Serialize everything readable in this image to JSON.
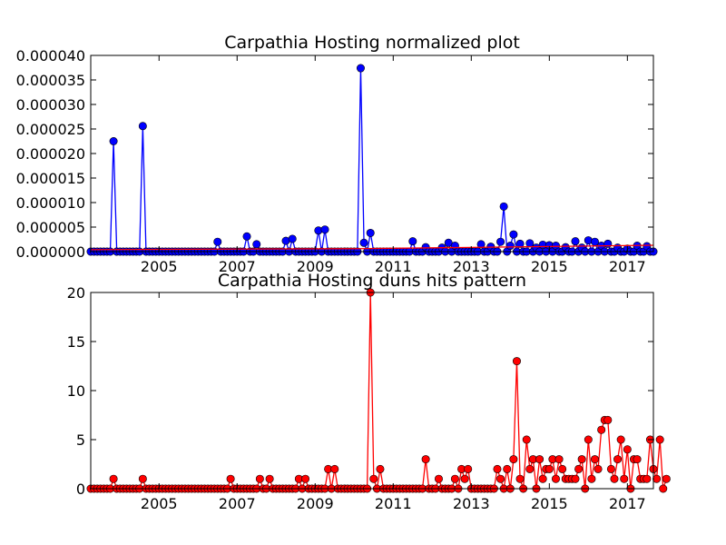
{
  "chart_data": [
    {
      "type": "line",
      "title": "Carpathia Hosting normalized plot",
      "xlabel": "",
      "ylabel": "",
      "x_ticks": [
        "2005",
        "2007",
        "2009",
        "2011",
        "2013",
        "2015",
        "2017"
      ],
      "y_ticks": [
        "0.000000",
        "0.000005",
        "0.000010",
        "0.000015",
        "0.000020",
        "0.000025",
        "0.000030",
        "0.000035",
        "0.000040"
      ],
      "xlim": [
        "2003-04",
        "2017-09"
      ],
      "ylim": [
        0,
        4e-05
      ],
      "grid": false,
      "series": [
        {
          "color": "#0000ff",
          "marker": "circle",
          "points": [
            [
              "2003-11",
              2.25e-05
            ],
            [
              "2004-08",
              2.56e-05
            ],
            [
              "2006-07",
              2e-06
            ],
            [
              "2007-04",
              3.1e-06
            ],
            [
              "2007-07",
              1.5e-06
            ],
            [
              "2008-04",
              2.2e-06
            ],
            [
              "2008-06",
              2.6e-06
            ],
            [
              "2009-02",
              4.3e-06
            ],
            [
              "2009-04",
              4.5e-06
            ],
            [
              "2010-03",
              3.74e-05
            ],
            [
              "2010-04",
              1.8e-06
            ],
            [
              "2010-06",
              3.8e-06
            ],
            [
              "2011-07",
              2.1e-06
            ],
            [
              "2011-11",
              9e-07
            ],
            [
              "2012-04",
              8e-07
            ],
            [
              "2012-06",
              1.8e-06
            ],
            [
              "2012-08",
              1.2e-06
            ],
            [
              "2013-04",
              1.5e-06
            ],
            [
              "2013-07",
              1e-06
            ],
            [
              "2013-10",
              2e-06
            ],
            [
              "2013-11",
              9.2e-06
            ],
            [
              "2014-01",
              1.2e-06
            ],
            [
              "2014-02",
              3.5e-06
            ],
            [
              "2014-04",
              1.6e-06
            ],
            [
              "2014-07",
              1.7e-06
            ],
            [
              "2014-09",
              8e-07
            ],
            [
              "2014-11",
              1.4e-06
            ],
            [
              "2015-01",
              1.3e-06
            ],
            [
              "2015-03",
              1.2e-06
            ],
            [
              "2015-06",
              9e-07
            ],
            [
              "2015-09",
              2.1e-06
            ],
            [
              "2015-11",
              8e-07
            ],
            [
              "2016-01",
              2.3e-06
            ],
            [
              "2016-03",
              2e-06
            ],
            [
              "2016-05",
              1.2e-06
            ],
            [
              "2016-07",
              1.6e-06
            ],
            [
              "2016-10",
              8e-07
            ],
            [
              "2017-01",
              6e-07
            ],
            [
              "2017-04",
              1.2e-06
            ],
            [
              "2017-07",
              1.1e-06
            ]
          ]
        },
        {
          "color": "#ff0000",
          "marker": "none",
          "points": [
            [
              "2003-04",
              4e-07
            ],
            [
              "2010-03",
              6e-07
            ],
            [
              "2017-09",
              1.3e-06
            ]
          ]
        }
      ]
    },
    {
      "type": "line",
      "title": "Carpathia Hosting duns hits pattern",
      "xlabel": "",
      "ylabel": "",
      "x_ticks": [
        "2005",
        "2007",
        "2009",
        "2011",
        "2013",
        "2015",
        "2017"
      ],
      "y_ticks": [
        "0",
        "5",
        "10",
        "15",
        "20"
      ],
      "xlim": [
        "2003-04",
        "2017-09"
      ],
      "ylim": [
        0,
        20
      ],
      "grid": false,
      "series": [
        {
          "color": "#ff0000",
          "marker": "circle",
          "start": "2003-04",
          "step": "month",
          "values": [
            0,
            0,
            0,
            0,
            0,
            0,
            0,
            1,
            0,
            0,
            0,
            0,
            0,
            0,
            0,
            0,
            1,
            0,
            0,
            0,
            0,
            0,
            0,
            0,
            0,
            0,
            0,
            0,
            0,
            0,
            0,
            0,
            0,
            0,
            0,
            0,
            0,
            0,
            0,
            0,
            0,
            0,
            0,
            1,
            0,
            0,
            0,
            0,
            0,
            0,
            0,
            0,
            1,
            0,
            0,
            1,
            0,
            0,
            0,
            0,
            0,
            0,
            0,
            0,
            1,
            0,
            1,
            0,
            0,
            0,
            0,
            0,
            0,
            2,
            0,
            2,
            0,
            0,
            0,
            0,
            0,
            0,
            0,
            0,
            0,
            0,
            20,
            1,
            0,
            2,
            0,
            0,
            0,
            0,
            0,
            0,
            0,
            0,
            0,
            0,
            0,
            0,
            0,
            3,
            0,
            0,
            0,
            1,
            0,
            0,
            0,
            0,
            1,
            0,
            2,
            1,
            2,
            0,
            0,
            0,
            0,
            0,
            0,
            0,
            0,
            2,
            1,
            0,
            2,
            0,
            3,
            13,
            1,
            0,
            5,
            2,
            3,
            0,
            3,
            1,
            2,
            2,
            3,
            1,
            3,
            2,
            1,
            1,
            1,
            1,
            2,
            3,
            0,
            5,
            1,
            3,
            2,
            6,
            7,
            7,
            2,
            1,
            3,
            5,
            1,
            4,
            0,
            3,
            3,
            1,
            1,
            1,
            5,
            2,
            1,
            5,
            0,
            1
          ]
        }
      ]
    }
  ]
}
